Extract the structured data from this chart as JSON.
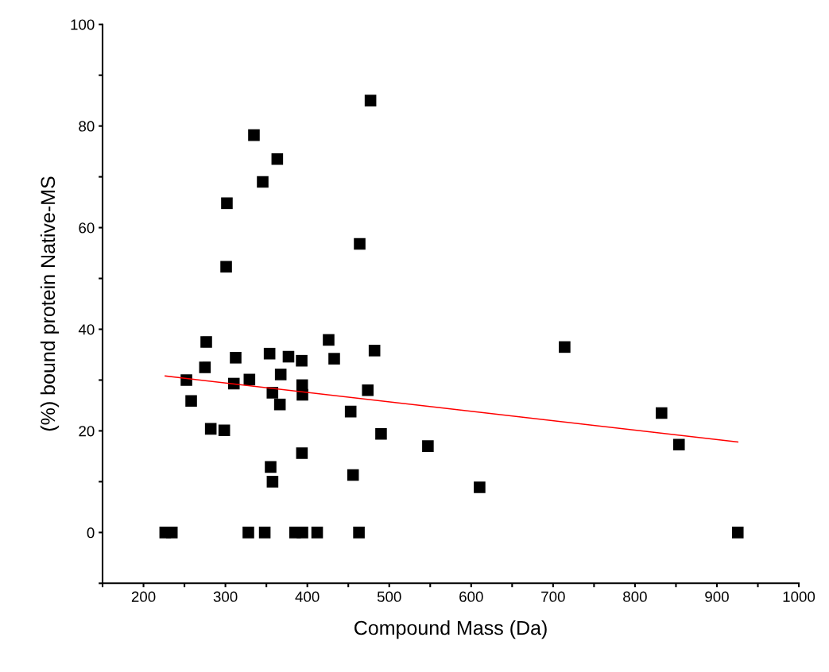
{
  "chart_data": {
    "type": "scatter",
    "xlabel": "Compound Mass (Da)",
    "ylabel": "(%) bound protein Native-MS",
    "xlim": [
      150,
      1000
    ],
    "ylim": [
      -10,
      100
    ],
    "xticks": [
      {
        "value": 150,
        "label": null
      },
      200,
      {
        "value": 250,
        "label": null
      },
      300,
      {
        "value": 350,
        "label": null
      },
      400,
      {
        "value": 450,
        "label": null
      },
      500,
      {
        "value": 550,
        "label": null
      },
      600,
      {
        "value": 650,
        "label": null
      },
      700,
      {
        "value": 750,
        "label": null
      },
      800,
      {
        "value": 850,
        "label": null
      },
      900,
      {
        "value": 950,
        "label": null
      },
      1000
    ],
    "yticks": [
      {
        "value": -10,
        "label": null
      },
      0,
      {
        "value": 10,
        "label": null
      },
      20,
      {
        "value": 30,
        "label": null
      },
      40,
      {
        "value": 50,
        "label": null
      },
      60,
      {
        "value": 70,
        "label": null
      },
      80,
      {
        "value": 90,
        "label": null
      },
      100
    ],
    "grid": false,
    "legend": false,
    "marker": "square",
    "series": [
      {
        "color": "#000000",
        "x": [
          226.5,
          234.6,
          328,
          348,
          385,
          394,
          412,
          463,
          925.5,
          276.6,
          275,
          252.4,
          258.2,
          282.1,
          298.6,
          312.5,
          310.3,
          329.3,
          353.9,
          367.5,
          357.4,
          366.5,
          377.0,
          393.1,
          393.7,
          394.0,
          355.2,
          357.5,
          393.4,
          426.0,
          432.8,
          452.9,
          455.8,
          473.8,
          482.0,
          490.0,
          547.2,
          477.1,
          334.8,
          363.3,
          345.5,
          301.8,
          463.9,
          300.9,
          610.3,
          714.1,
          832.4,
          853.7
        ],
        "values": [
          0,
          0,
          0,
          0,
          0,
          0,
          0,
          0,
          0,
          37.5,
          32.5,
          30.0,
          25.9,
          20.4,
          20.1,
          34.4,
          29.3,
          30.1,
          35.2,
          31.1,
          27.5,
          25.2,
          34.6,
          33.8,
          29.0,
          27.1,
          12.9,
          10.0,
          15.6,
          37.9,
          34.2,
          23.8,
          11.3,
          28.0,
          35.8,
          19.4,
          17.0,
          85.0,
          78.2,
          73.5,
          69.0,
          64.8,
          56.8,
          52.3,
          8.9,
          36.5,
          23.5,
          17.3
        ]
      },
      {
        "type": "line",
        "color": "#ff0000",
        "marker": "none",
        "line_style": "solid",
        "x": [
          226.5,
          925.5
        ],
        "values": [
          30.8,
          17.8
        ]
      }
    ]
  }
}
